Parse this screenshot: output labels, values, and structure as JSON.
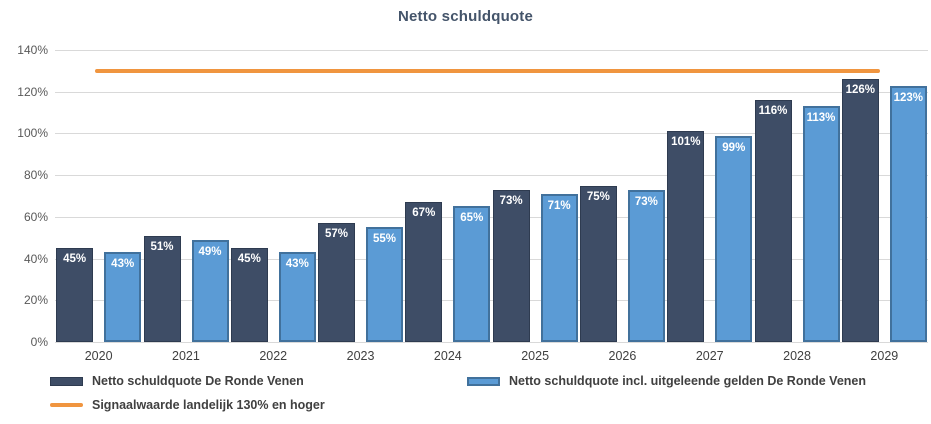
{
  "title": "Netto schuldquote",
  "chart_data": {
    "type": "bar",
    "categories": [
      "2020",
      "2021",
      "2022",
      "2023",
      "2024",
      "2025",
      "2026",
      "2027",
      "2028",
      "2029"
    ],
    "series": [
      {
        "name": "Netto schuldquote De Ronde Venen",
        "color": "#3E4D66",
        "border_color": "#2E3B50",
        "values": [
          45,
          51,
          45,
          57,
          67,
          73,
          75,
          101,
          116,
          126
        ]
      },
      {
        "name": "Netto schuldquote incl. uitgeleende gelden De Ronde Venen",
        "color": "#5B9BD5",
        "border_color": "#41719C",
        "values": [
          43,
          49,
          43,
          55,
          65,
          71,
          73,
          99,
          113,
          123
        ]
      }
    ],
    "threshold_line": {
      "name": "Signaalwaarde landelijk 130% en hoger",
      "value": 130,
      "color": "#F0953F"
    },
    "value_label_suffix": "%",
    "y_ticks": [
      "0%",
      "20%",
      "40%",
      "60%",
      "80%",
      "100%",
      "120%",
      "140%"
    ],
    "ylim": [
      0,
      140
    ],
    "xlabel": "",
    "ylabel": "",
    "grid": true,
    "legend_position": "bottom"
  }
}
